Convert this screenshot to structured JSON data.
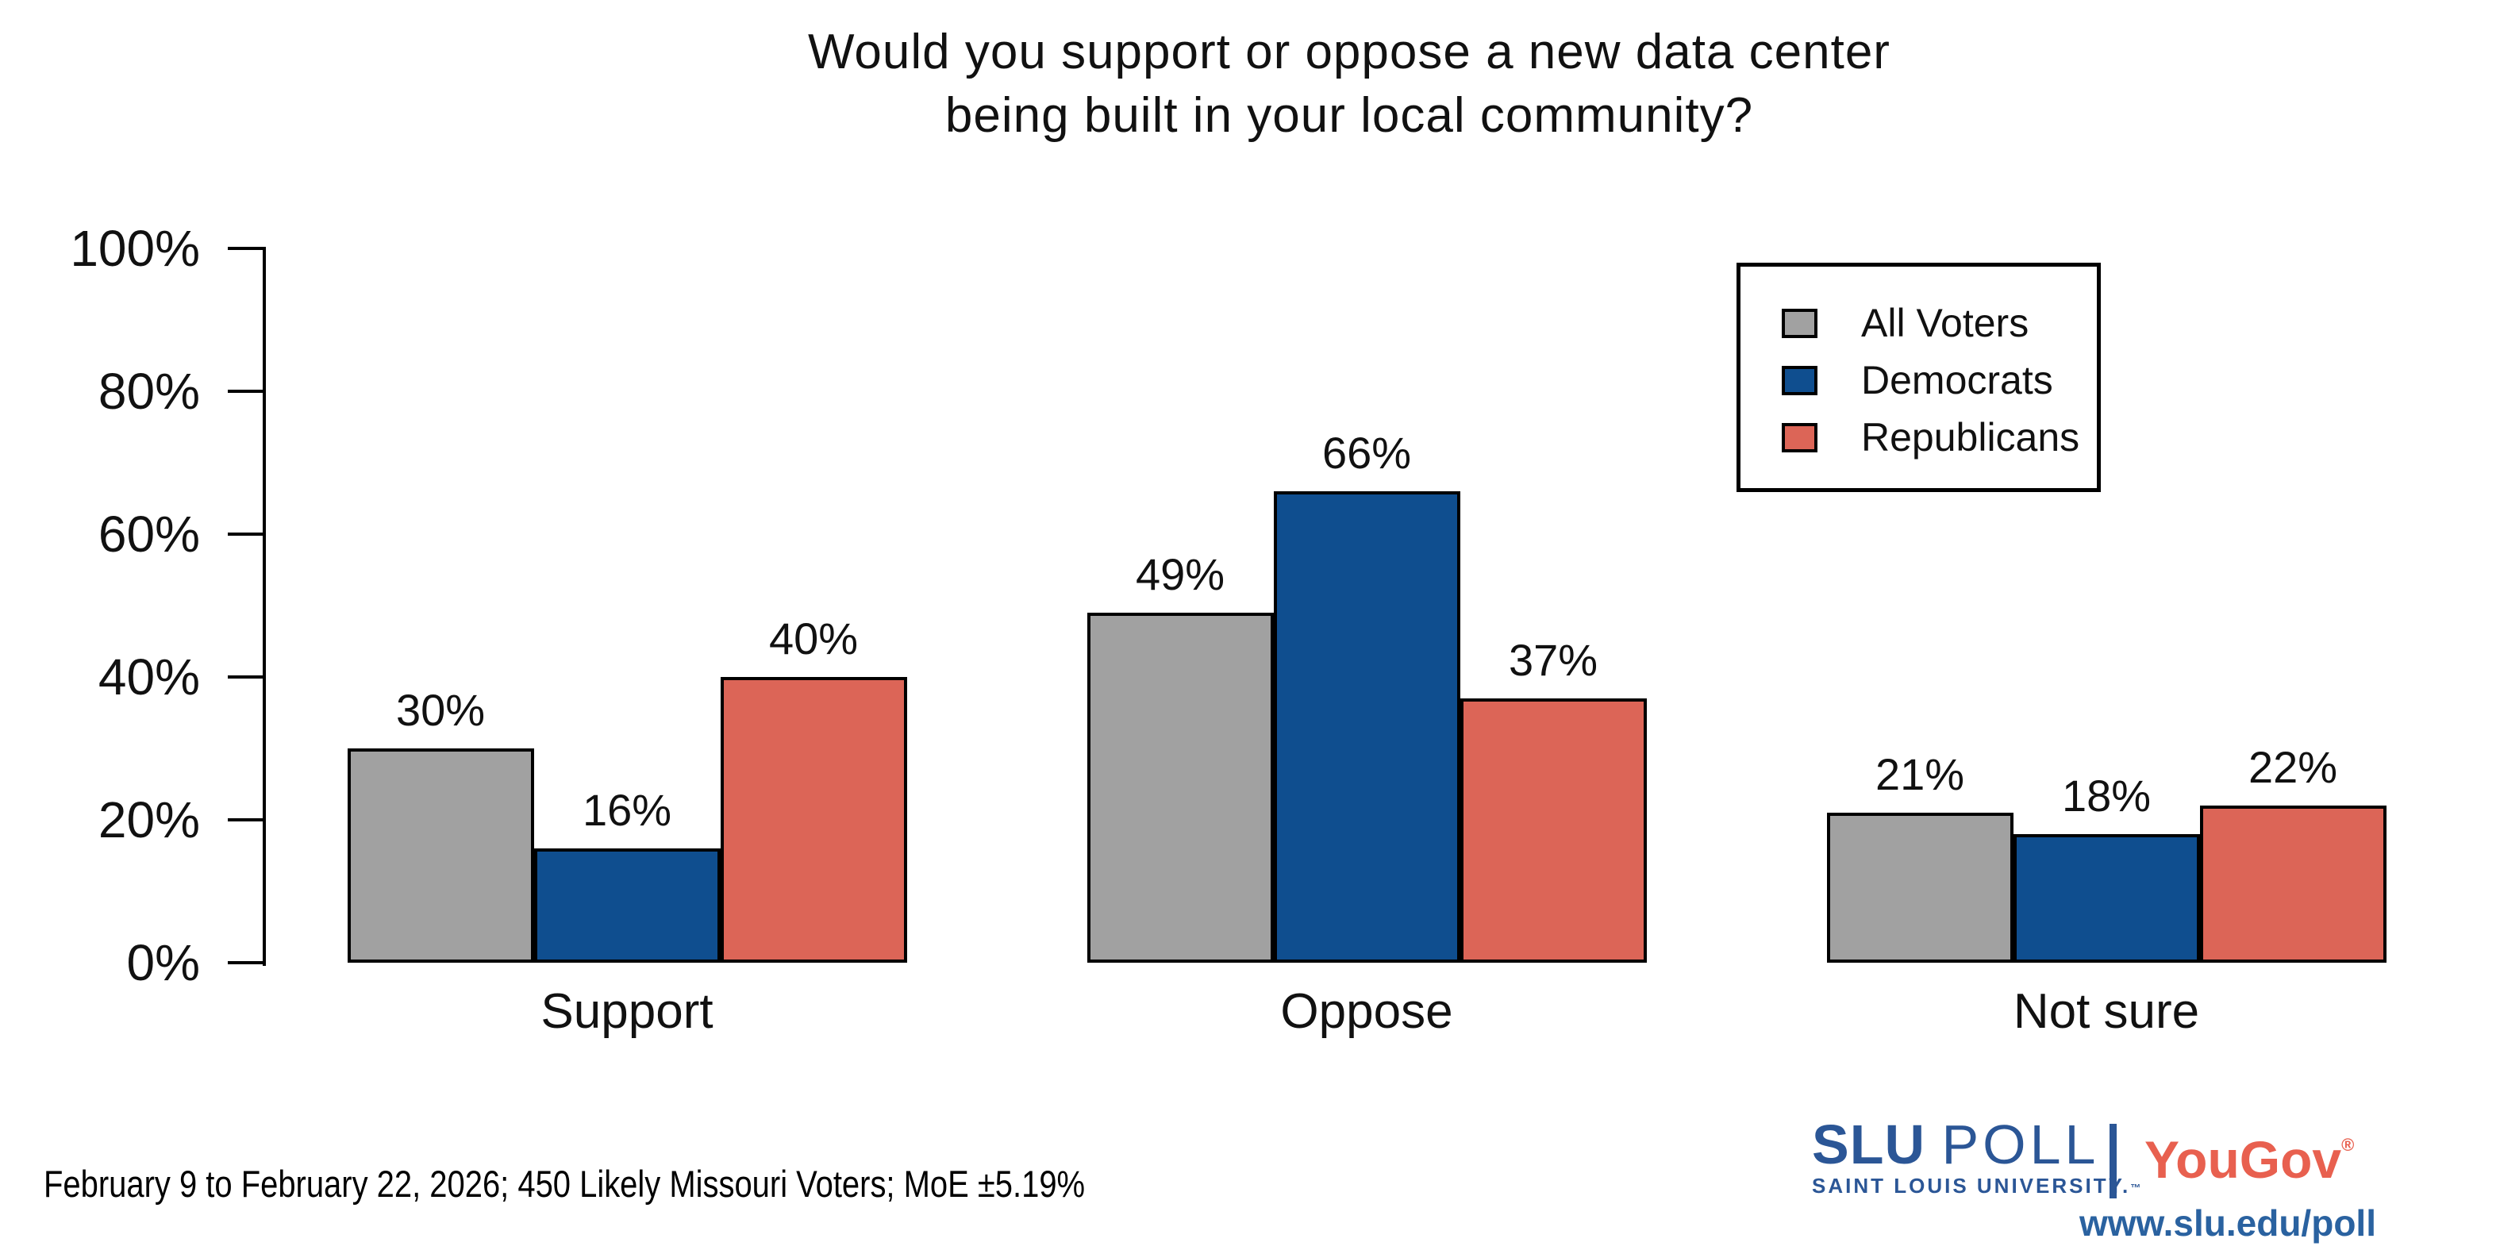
{
  "title": {
    "line1": "Would you support or oppose a new data center",
    "line2": "being built in your local community?"
  },
  "y_axis": {
    "tick_labels": [
      "0%",
      "20%",
      "40%",
      "60%",
      "80%",
      "100%"
    ]
  },
  "legend": {
    "items": [
      {
        "label": "All Voters",
        "color": "#a1a1a1"
      },
      {
        "label": "Democrats",
        "color": "#0f4e8f"
      },
      {
        "label": "Republicans",
        "color": "#dc6557"
      }
    ]
  },
  "footnote": "February 9 to February 22, 2026; 450 Likely Missouri Voters; MoE ±5.19%",
  "branding": {
    "slu": "SLU",
    "poll": "POLL",
    "university": "SAINT LOUIS UNIVERSITY.",
    "tm": "™",
    "yougov": "YouGov",
    "registered": "®",
    "url": "www.slu.edu/poll",
    "slu_blue": "#2b5696",
    "yougov_red": "#e8604f",
    "url_blue": "#2a62a0"
  },
  "chart_data": {
    "type": "bar",
    "title": "Would you support or oppose a new data center being built in your local community?",
    "categories": [
      "Support",
      "Oppose",
      "Not sure"
    ],
    "series": [
      {
        "name": "All Voters",
        "color": "#a1a1a1",
        "values": [
          30,
          49,
          21
        ]
      },
      {
        "name": "Democrats",
        "color": "#0f4e8f",
        "values": [
          16,
          66,
          18
        ]
      },
      {
        "name": "Republicans",
        "color": "#dc6557",
        "values": [
          40,
          37,
          22
        ]
      }
    ],
    "value_suffix": "%",
    "xlabel": "",
    "ylabel": "",
    "ylim": [
      0,
      100
    ],
    "yticks": [
      0,
      20,
      40,
      60,
      80,
      100
    ],
    "grid": false,
    "bar_edge_color": "#000000",
    "legend_position": "upper right"
  }
}
